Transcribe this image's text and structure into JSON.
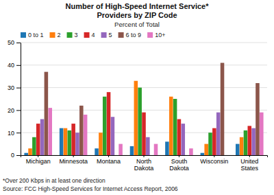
{
  "chart_data": {
    "type": "bar",
    "title": "Number of High-Speed Internet Service*\nProviders by ZIP Code",
    "subtitle": "Percent of Total",
    "annotations": [
      "*Over 200 Kbps in at least one direction",
      " Source: FCC High-Speed Services for Internet Access Report, 2006"
    ],
    "categories": [
      "Michigan",
      "Minnesota",
      "Montana",
      "North\nDakota",
      "South\nDakota",
      "Wisconsin",
      "United\nStates"
    ],
    "series": [
      {
        "name": "0 to 1",
        "values": [
          1,
          12,
          3,
          4,
          6,
          1,
          5
        ]
      },
      {
        "name": "2",
        "values": [
          3,
          12,
          10,
          33,
          26,
          5,
          8
        ]
      },
      {
        "name": "3",
        "values": [
          8,
          11,
          26,
          30,
          25,
          10,
          11
        ]
      },
      {
        "name": "4",
        "values": [
          14,
          14,
          28,
          19,
          16,
          12,
          13
        ]
      },
      {
        "name": "5",
        "values": [
          16,
          10,
          17,
          8,
          14,
          19,
          12
        ]
      },
      {
        "name": "6 to 9",
        "values": [
          37,
          22,
          0,
          0,
          0,
          41,
          32
        ]
      },
      {
        "name": "10+",
        "values": [
          21,
          18,
          5,
          5,
          3,
          0,
          19
        ]
      }
    ],
    "ylim": [
      0,
      50
    ],
    "yticks": [
      0,
      10,
      20,
      30,
      40,
      50
    ],
    "grid": true,
    "legend": "upper left"
  }
}
